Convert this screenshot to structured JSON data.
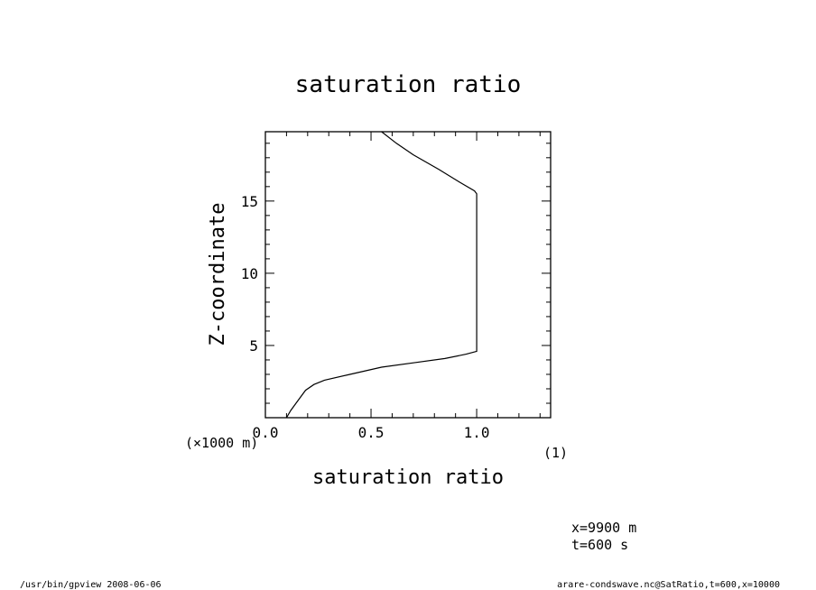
{
  "chart_data": {
    "type": "line",
    "title": "saturation ratio",
    "xlabel": "saturation ratio",
    "xunit": "(1)",
    "ylabel": "Z-coordinate",
    "yunit": "(×1000 m)",
    "xlim": [
      0.0,
      1.35
    ],
    "ylim": [
      0.0,
      19.8
    ],
    "xticks": [
      "0.0",
      "0.5",
      "1.0"
    ],
    "yticks": [
      "5",
      "10",
      "15"
    ],
    "xtick_values": [
      0.0,
      0.5,
      1.0
    ],
    "ytick_values": [
      5,
      10,
      15
    ],
    "grid": false,
    "series": [
      {
        "x": [
          0.1,
          0.12,
          0.15,
          0.19,
          0.23,
          0.28,
          0.4,
          0.55,
          0.7,
          0.85,
          0.95,
          1.0,
          1.0,
          1.0,
          1.0,
          0.99,
          0.92,
          0.82,
          0.7,
          0.62,
          0.55
        ],
        "y": [
          0.0,
          0.5,
          1.1,
          1.9,
          2.3,
          2.6,
          3.0,
          3.5,
          3.8,
          4.1,
          4.4,
          4.6,
          8.0,
          12.0,
          15.5,
          15.7,
          16.3,
          17.2,
          18.2,
          19.0,
          19.8
        ]
      }
    ]
  },
  "annotations": {
    "position_x": "x=9900 m",
    "time": "t=600 s",
    "footer_left": "/usr/bin/gpview  2008-06-06",
    "footer_right": "arare-condswave.nc@SatRatio,t=600,x=10000"
  }
}
